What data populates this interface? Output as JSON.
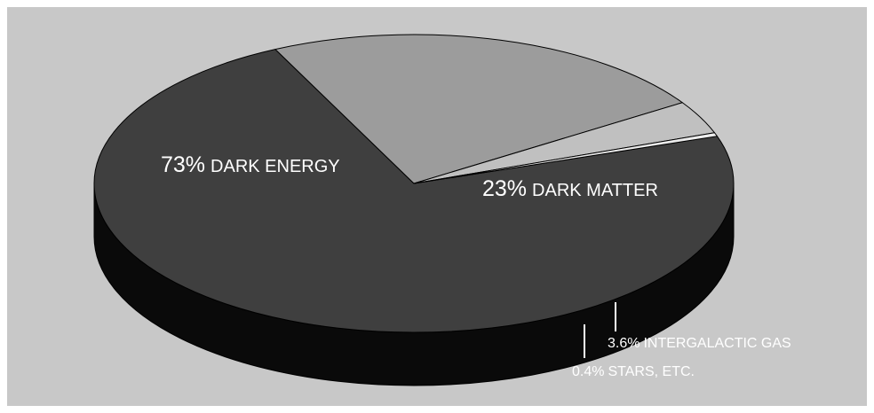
{
  "chart_data": {
    "type": "pie",
    "style": "3d-tilted",
    "title": "",
    "slices": [
      {
        "pct": 73,
        "value_text": "73%",
        "label": "DARK ENERGY",
        "color": "#3f3f3f",
        "side_color": "#0a0a0a"
      },
      {
        "pct": 23,
        "value_text": "23%",
        "label": "DARK MATTER",
        "color": "#9c9c9c",
        "side_color": "#6e6e6e"
      },
      {
        "pct": 3.6,
        "value_text": "3.6%",
        "label": "INTERGALACTIC GAS",
        "color": "#c0c0c0",
        "side_color": "#a9a9a9"
      },
      {
        "pct": 0.4,
        "value_text": "0.4%",
        "label": "STARS, ETC.",
        "color": "#ececec",
        "side_color": "#d9d9d9"
      }
    ],
    "labels_inside": [
      "DARK ENERGY",
      "DARK MATTER"
    ],
    "labels_outside": [
      "INTERGALACTIC GAS",
      "STARS, ETC."
    ],
    "legend": "none"
  },
  "colors": {
    "background": "#c8c8c8",
    "frame": "#ffffff",
    "outline": "#000000",
    "label_text": "#ffffff"
  }
}
